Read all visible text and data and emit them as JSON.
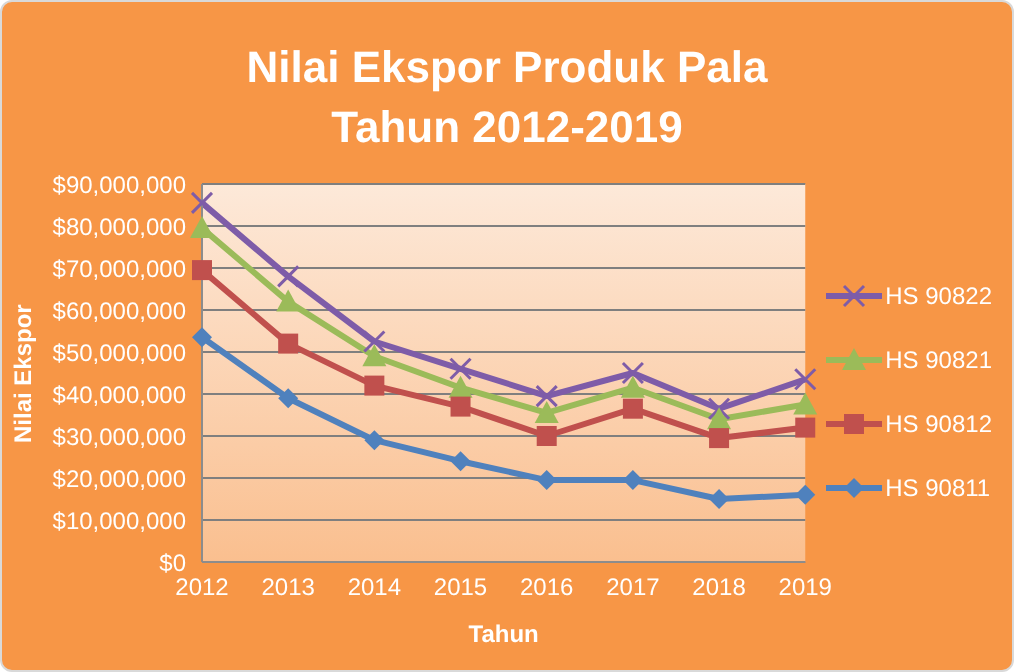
{
  "chart_data": {
    "type": "line",
    "title": "Nilai Ekspor Produk Pala\nTahun 2012-2019",
    "xlabel": "Tahun",
    "ylabel": "Nilai Ekspor",
    "categories": [
      "2012",
      "2013",
      "2014",
      "2015",
      "2016",
      "2017",
      "2018",
      "2019"
    ],
    "series": [
      {
        "name": "HS 90822",
        "color": "#7e5ca8",
        "marker": "cross",
        "values": [
          85500000,
          68000000,
          52500000,
          46000000,
          39500000,
          45000000,
          36500000,
          43500000
        ]
      },
      {
        "name": "HS 90821",
        "color": "#9bbb59",
        "marker": "triangle",
        "values": [
          79500000,
          62000000,
          49000000,
          41500000,
          35500000,
          41500000,
          34000000,
          37500000
        ]
      },
      {
        "name": "HS 90812",
        "color": "#c0504d",
        "marker": "square",
        "values": [
          69500000,
          52000000,
          42000000,
          37000000,
          30000000,
          36500000,
          29500000,
          32000000
        ]
      },
      {
        "name": "HS 90811",
        "color": "#4f81bd",
        "marker": "diamond",
        "values": [
          53500000,
          39000000,
          29000000,
          24000000,
          19500000,
          19500000,
          15000000,
          16000000
        ]
      }
    ],
    "ylim": [
      0,
      90000000
    ],
    "yticks": [
      {
        "value": 0,
        "label": "$0"
      },
      {
        "value": 10000000,
        "label": "$10,000,000"
      },
      {
        "value": 20000000,
        "label": "$20,000,000"
      },
      {
        "value": 30000000,
        "label": "$30,000,000"
      },
      {
        "value": 40000000,
        "label": "$40,000,000"
      },
      {
        "value": 50000000,
        "label": "$50,000,000"
      },
      {
        "value": 60000000,
        "label": "$60,000,000"
      },
      {
        "value": 70000000,
        "label": "$70,000,000"
      },
      {
        "value": 80000000,
        "label": "$80,000,000"
      },
      {
        "value": 90000000,
        "label": "$90,000,000"
      }
    ],
    "grid": "y",
    "legend": "right",
    "line_style": "solid"
  }
}
